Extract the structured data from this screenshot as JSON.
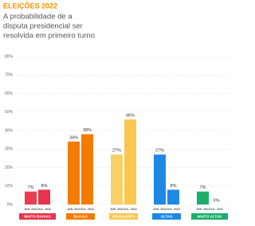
{
  "chart_data": {
    "type": "bar",
    "title": "ELEIÇÕES 2022",
    "subtitle": [
      "A probabilidade de a",
      "disputa presidencial ser",
      "resolvida em primeiro turno"
    ],
    "categories": [
      "MUITO BAIXAS",
      "BAIXAS",
      "REGULARES",
      "ALTAS",
      "MUITO ALTAS"
    ],
    "category_colors": [
      "#e8334a",
      "#f47b00",
      "#f9c74f",
      "#1e88e5",
      "#1aaf6a"
    ],
    "series": [
      {
        "name": "JUN. 2022",
        "colors": [
          "#ea3d50",
          "#f47b00",
          "#f9cf6a",
          "#1e88e5",
          "#1aaf6a"
        ],
        "values": [
          7,
          34,
          27,
          27,
          7
        ],
        "value_labels": [
          "7%",
          "34%",
          "27%",
          "27%",
          "7%"
        ]
      },
      {
        "name": "JUL. 2022",
        "colors": [
          "#e8334a",
          "#f47b00",
          "#f9c74f",
          "#1e88e5",
          "#1aaf6a"
        ],
        "values": [
          8,
          38,
          46,
          8,
          0
        ],
        "value_labels": [
          "8%",
          "38%",
          "46%",
          "8%",
          "0%"
        ]
      }
    ],
    "ylim": [
      0,
      80
    ],
    "yticks": [
      {
        "value": 0,
        "label": "0%"
      },
      {
        "value": 10,
        "label": "10%"
      },
      {
        "value": 20,
        "label": "20%"
      },
      {
        "value": 30,
        "label": "30%"
      },
      {
        "value": 40,
        "label": "40%"
      },
      {
        "value": 50,
        "label": "50%"
      },
      {
        "value": 60,
        "label": "60%"
      },
      {
        "value": 70,
        "label": "70%"
      },
      {
        "value": 80,
        "label": "80%"
      }
    ],
    "grid": true
  }
}
